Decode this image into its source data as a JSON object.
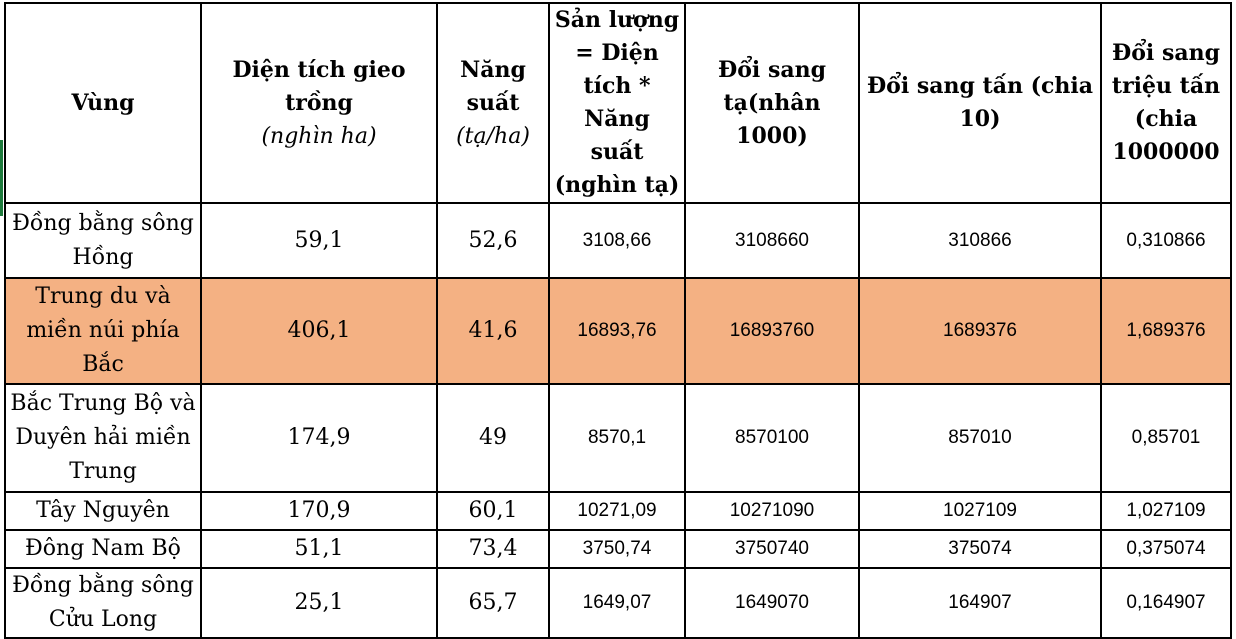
{
  "chart_data": {
    "type": "table",
    "columns": [
      {
        "label": "Vùng",
        "unit": ""
      },
      {
        "label": "Diện tích gieo trồng",
        "unit": "(nghìn ha)"
      },
      {
        "label": "Năng suất",
        "unit": "(tạ/ha)"
      },
      {
        "label": "Sản lượng = Diện tích * Năng suất (nghìn tạ)",
        "unit": ""
      },
      {
        "label": "Đổi sang tạ(nhân 1000)",
        "unit": ""
      },
      {
        "label": "Đổi sang tấn (chia 10)",
        "unit": ""
      },
      {
        "label": "Đổi sang triệu tấn (chia 1000000",
        "unit": ""
      }
    ],
    "rows": [
      {
        "region": "Đồng bằng sông Hồng",
        "area": "59,1",
        "yield": "52,6",
        "output": "3108,66",
        "ta": "3108660",
        "tan": "310866",
        "trieu_tan": "0,310866",
        "highlight": false
      },
      {
        "region": "Trung du và miền núi phía Bắc",
        "area": "406,1",
        "yield": "41,6",
        "output": "16893,76",
        "ta": "16893760",
        "tan": "1689376",
        "trieu_tan": "1,689376",
        "highlight": true
      },
      {
        "region": "Bắc Trung Bộ và Duyên hải miền Trung",
        "area": "174,9",
        "yield": "49",
        "output": "8570,1",
        "ta": "8570100",
        "tan": "857010",
        "trieu_tan": "0,85701",
        "highlight": false
      },
      {
        "region": "Tây Nguyên",
        "area": "170,9",
        "yield": "60,1",
        "output": "10271,09",
        "ta": "10271090",
        "tan": "1027109",
        "trieu_tan": "1,027109",
        "highlight": false
      },
      {
        "region": "Đông Nam Bộ",
        "area": "51,1",
        "yield": "73,4",
        "output": "3750,74",
        "ta": "3750740",
        "tan": "375074",
        "trieu_tan": "0,375074",
        "highlight": false
      },
      {
        "region": "Đồng bằng sông Cửu Long",
        "area": "25,1",
        "yield": "65,7",
        "output": "1649,07",
        "ta": "1649070",
        "tan": "164907",
        "trieu_tan": "0,164907",
        "highlight": false
      }
    ],
    "colors": {
      "highlight": "#f4b183",
      "border": "#000000",
      "left_marker": "#1e7b3c"
    }
  }
}
